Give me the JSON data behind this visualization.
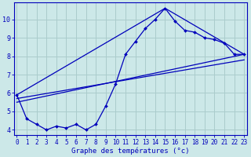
{
  "bg_color": "#cce8e8",
  "grid_color": "#aacccc",
  "line_color": "#0000bb",
  "series1_x": [
    0,
    1,
    2,
    3,
    4,
    5,
    6,
    7,
    8,
    9,
    10,
    11,
    12,
    13,
    14,
    15,
    16,
    17,
    18,
    19,
    20,
    21,
    22,
    23
  ],
  "series1_y": [
    5.9,
    4.6,
    4.3,
    4.0,
    4.2,
    4.1,
    4.3,
    4.0,
    4.3,
    5.3,
    6.5,
    8.1,
    8.8,
    9.5,
    10.0,
    10.6,
    9.9,
    9.4,
    9.3,
    9.0,
    8.9,
    8.7,
    8.1,
    8.1
  ],
  "line2_x": [
    0,
    23
  ],
  "line2_y": [
    5.5,
    8.1
  ],
  "line3_x": [
    0,
    23
  ],
  "line3_y": [
    5.7,
    7.8
  ],
  "line4_x": [
    0,
    15,
    23
  ],
  "line4_y": [
    5.9,
    10.6,
    8.1
  ],
  "ylim": [
    3.7,
    10.9
  ],
  "yticks": [
    4,
    5,
    6,
    7,
    8,
    9,
    10
  ],
  "xlim": [
    -0.3,
    23.3
  ],
  "xlabel": "Graphe des températures (°c)",
  "xlabel_fontsize": 6.5,
  "tick_fontsize": 5.5,
  "linewidth": 0.9,
  "marker_size": 2.0
}
